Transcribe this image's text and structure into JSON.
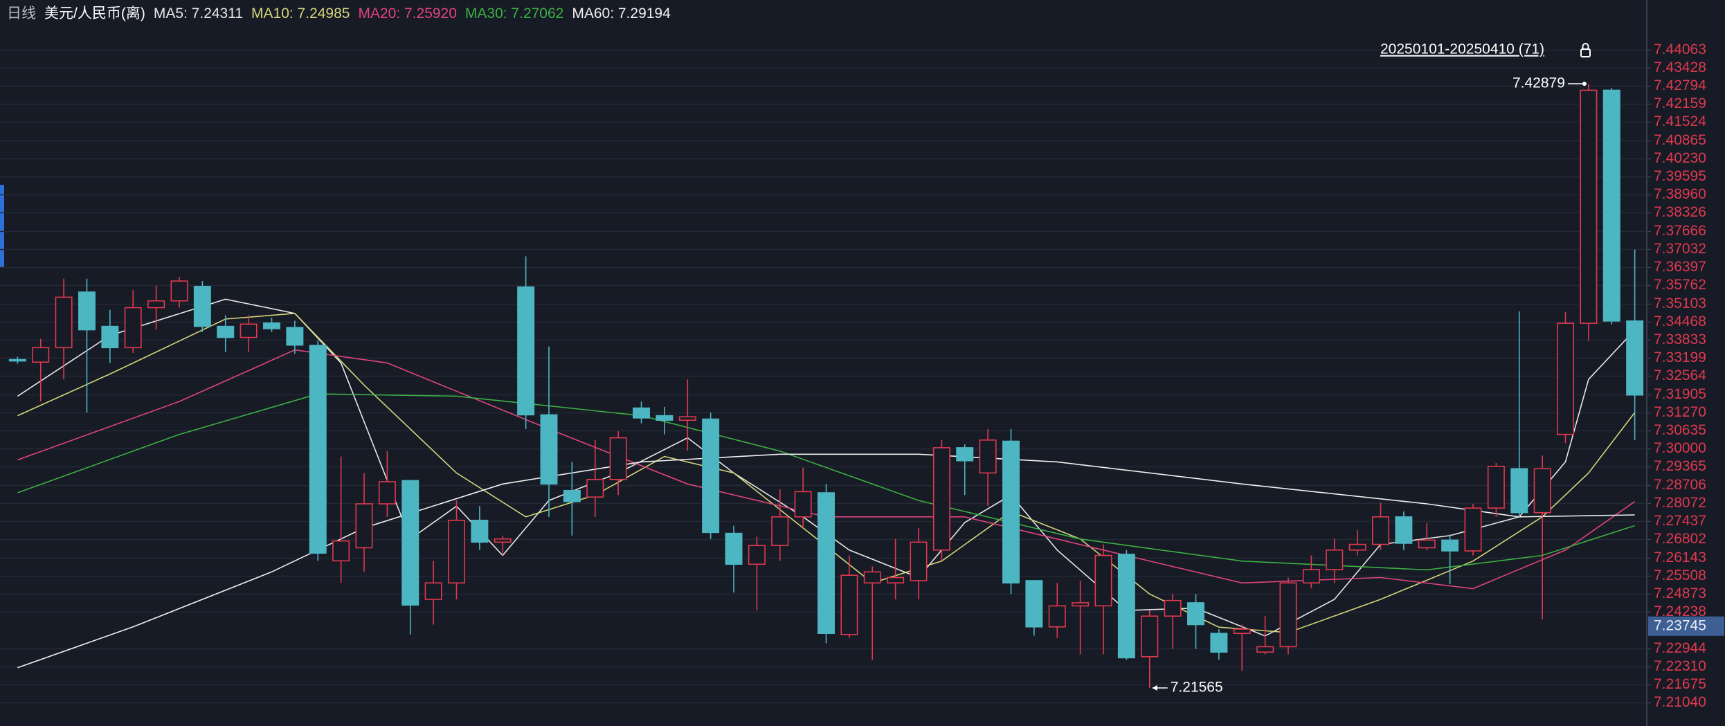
{
  "chart_data": {
    "type": "candlestick",
    "period_label": "日线",
    "title": "美元/人民币(离)",
    "range_label": "20250101-20250410 (71)",
    "up_color": "#e0394f",
    "down_color": "#4db6c3",
    "ylim": [
      7.20223,
      7.45834
    ],
    "xlim": [
      -0.76,
      70.52
    ],
    "grid": true,
    "yticks": [
      7.44063,
      7.43428,
      7.42794,
      7.42159,
      7.41524,
      7.40865,
      {
        "value": 7.4023,
        "label": "7.40230"
      },
      7.39595,
      {
        "value": 7.3896,
        "label": "7.38960"
      },
      7.38326,
      7.37666,
      7.37032,
      7.36397,
      7.35762,
      7.35103,
      7.34468,
      7.33833,
      7.33199,
      7.32564,
      7.31905,
      {
        "value": 7.3127,
        "label": "7.31270"
      },
      7.30635,
      {
        "value": 7.3,
        "label": "7.30000"
      },
      7.29365,
      7.28706,
      7.28072,
      7.27437,
      7.26802,
      7.26143,
      7.25508,
      7.24873,
      7.24238,
      7.22944,
      {
        "value": 7.2231,
        "label": "7.22310"
      },
      7.21675,
      {
        "value": 7.2104,
        "label": "7.21040"
      }
    ],
    "current_price": 7.23745,
    "open": [
      7.3315,
      7.3306,
      7.3357,
      7.3553,
      7.3432,
      7.3357,
      7.3498,
      7.3522,
      7.3573,
      7.3432,
      7.3393,
      7.3444,
      7.3428,
      7.3365,
      7.2605,
      7.2651,
      7.2806,
      7.2888,
      7.2469,
      7.2527,
      7.2748,
      7.2671,
      7.3571,
      7.312,
      7.2853,
      7.283,
      7.2892,
      7.3144,
      7.3117,
      7.3101,
      7.3105,
      7.2702,
      7.2593,
      7.2659,
      7.276,
      7.2845,
      7.2345,
      7.2527,
      7.2527,
      7.2535,
      7.2643,
      7.3004,
      7.2915,
      7.3027,
      7.2535,
      7.2372,
      7.2446,
      7.2446,
      7.2628,
      7.2267,
      7.241,
      7.2457,
      7.2349,
      7.2349,
      7.2283,
      7.2302,
      7.2527,
      7.2574,
      7.2643,
      7.2663,
      7.276,
      7.2651,
      7.2678,
      7.264,
      7.2791,
      7.293,
      7.2775,
      7.3051,
      7.3443,
      7.4265,
      7.3451
    ],
    "high": [
      7.3325,
      7.3388,
      7.36,
      7.36,
      7.349,
      7.356,
      7.3576,
      7.3607,
      7.3592,
      7.3471,
      7.3471,
      7.3463,
      7.3452,
      7.3381,
      7.2973,
      7.2915,
      7.2992,
      7.2888,
      7.2605,
      7.2818,
      7.2798,
      7.2694,
      7.3679,
      7.3361,
      7.2954,
      7.3032,
      7.3062,
      7.3167,
      7.3148,
      7.3245,
      7.3128,
      7.2729,
      7.269,
      7.2857,
      7.2934,
      7.2876,
      7.2624,
      7.2585,
      7.2682,
      7.2721,
      7.3031,
      7.3016,
      7.307,
      7.307,
      7.2535,
      7.2527,
      7.2535,
      7.2663,
      7.2643,
      7.243,
      7.2488,
      7.2488,
      7.2364,
      7.238,
      7.2411,
      7.2546,
      7.2624,
      7.2682,
      7.2713,
      7.281,
      7.2779,
      7.2737,
      7.2698,
      7.2806,
      7.295,
      7.3485,
      7.2977,
      7.3482,
      7.42879,
      7.4273,
      7.3703
    ],
    "low": [
      7.33,
      7.3167,
      7.3245,
      7.3128,
      7.3303,
      7.3338,
      7.342,
      7.3498,
      7.3412,
      7.3342,
      7.3342,
      7.3412,
      7.3335,
      7.2605,
      7.2527,
      7.2566,
      7.276,
      7.2345,
      7.238,
      7.2469,
      7.2643,
      7.2624,
      7.307,
      7.276,
      7.2694,
      7.276,
      7.2837,
      7.309,
      7.3051,
      7.2993,
      7.2682,
      7.2493,
      7.243,
      7.2605,
      7.2721,
      7.2314,
      7.2333,
      7.2256,
      7.2469,
      7.2469,
      7.2605,
      7.2837,
      7.2799,
      7.2488,
      7.2341,
      7.2333,
      7.2275,
      7.2275,
      7.2256,
      7.21565,
      7.2294,
      7.2294,
      7.2256,
      7.2217,
      7.2275,
      7.2275,
      7.2508,
      7.2527,
      7.2624,
      7.2643,
      7.2643,
      7.2643,
      7.2523,
      7.2624,
      7.276,
      7.276,
      7.2399,
      7.302,
      7.3381,
      7.3439,
      7.3031
    ],
    "close": [
      7.331,
      7.3357,
      7.3535,
      7.342,
      7.3357,
      7.3498,
      7.3522,
      7.3592,
      7.3432,
      7.3393,
      7.344,
      7.3424,
      7.3366,
      7.2632,
      7.2675,
      7.2806,
      7.2884,
      7.2449,
      7.2527,
      7.2748,
      7.2671,
      7.2682,
      7.312,
      7.2876,
      7.2814,
      7.2892,
      7.3039,
      7.3109,
      7.3101,
      7.3113,
      7.2705,
      7.2593,
      7.2659,
      7.276,
      7.2849,
      7.2349,
      7.2554,
      7.2566,
      7.2546,
      7.2671,
      7.3004,
      7.2958,
      7.3031,
      7.2527,
      7.2372,
      7.2446,
      7.2457,
      7.2624,
      7.2263,
      7.241,
      7.2465,
      7.238,
      7.2283,
      7.2364,
      7.2302,
      7.2527,
      7.2574,
      7.2643,
      7.2663,
      7.276,
      7.2667,
      7.2678,
      7.264,
      7.2791,
      7.2938,
      7.2775,
      7.293,
      7.3443,
      7.4265,
      7.3451,
      7.319
    ],
    "annotations": [
      {
        "x": 68,
        "value": 7.42879,
        "arrow": "right"
      },
      {
        "x": 49,
        "value": 7.21565,
        "arrow": "left"
      }
    ],
    "ma": [
      {
        "name": "MA5: 7.24311",
        "color": "#e8e8e8",
        "x": [
          0,
          4,
          9,
          12,
          14,
          17,
          19,
          21,
          23,
          26,
          29,
          31,
          34,
          36,
          39,
          41,
          43,
          45,
          48,
          51,
          54,
          57,
          59,
          62,
          65,
          67,
          68,
          70
        ],
        "values": [
          7.3186,
          7.34,
          7.3528,
          7.3478,
          7.3303,
          7.2682,
          7.2798,
          7.2624,
          7.2818,
          7.2915,
          7.3039,
          7.2915,
          7.276,
          7.2643,
          7.2546,
          7.274,
          7.2837,
          7.2643,
          7.243,
          7.2438,
          7.234,
          7.2469,
          7.2663,
          7.2694,
          7.276,
          7.2954,
          7.3245,
          7.3419
        ]
      },
      {
        "name": "MA10: 7.24985",
        "color": "#d6d67a",
        "x": [
          0,
          4,
          9,
          12,
          15,
          19,
          22,
          25,
          28,
          31,
          34,
          37,
          40,
          43,
          46,
          49,
          52,
          55,
          59,
          63,
          66,
          68,
          70
        ],
        "values": [
          7.3117,
          7.3264,
          7.3458,
          7.3478,
          7.3225,
          7.2915,
          7.276,
          7.2837,
          7.2973,
          7.2915,
          7.2721,
          7.2527,
          7.2604,
          7.2779,
          7.2682,
          7.2488,
          7.2371,
          7.2352,
          7.2469,
          7.2604,
          7.276,
          7.2915,
          7.3128
        ]
      },
      {
        "name": "MA20: 7.25920",
        "color": "#e0457b",
        "x": [
          0,
          7,
          12,
          16,
          23,
          29,
          35,
          41,
          47,
          53,
          59,
          63,
          67,
          70
        ],
        "values": [
          7.2961,
          7.3167,
          7.3349,
          7.3303,
          7.307,
          7.2876,
          7.276,
          7.276,
          7.2643,
          7.2527,
          7.2546,
          7.2507,
          7.2643,
          7.2814
        ]
      },
      {
        "name": "MA30: 7.27062",
        "color": "#3cb043",
        "x": [
          0,
          7,
          13,
          19,
          27,
          33,
          39,
          46,
          53,
          61,
          66,
          70
        ],
        "values": [
          7.2845,
          7.3051,
          7.3194,
          7.3186,
          7.3117,
          7.2992,
          7.2818,
          7.2682,
          7.2604,
          7.2573,
          7.2624,
          7.2729
        ]
      },
      {
        "name": "MA60: 7.29194",
        "color": "#f0f0f0",
        "x": [
          0,
          5,
          11,
          15,
          21,
          27,
          33,
          39,
          45,
          53,
          61,
          65,
          70
        ],
        "values": [
          7.2228,
          7.2372,
          7.2566,
          7.2721,
          7.2876,
          7.2954,
          7.2981,
          7.2981,
          7.2954,
          7.2876,
          7.2806,
          7.276,
          7.2767
        ]
      }
    ]
  }
}
